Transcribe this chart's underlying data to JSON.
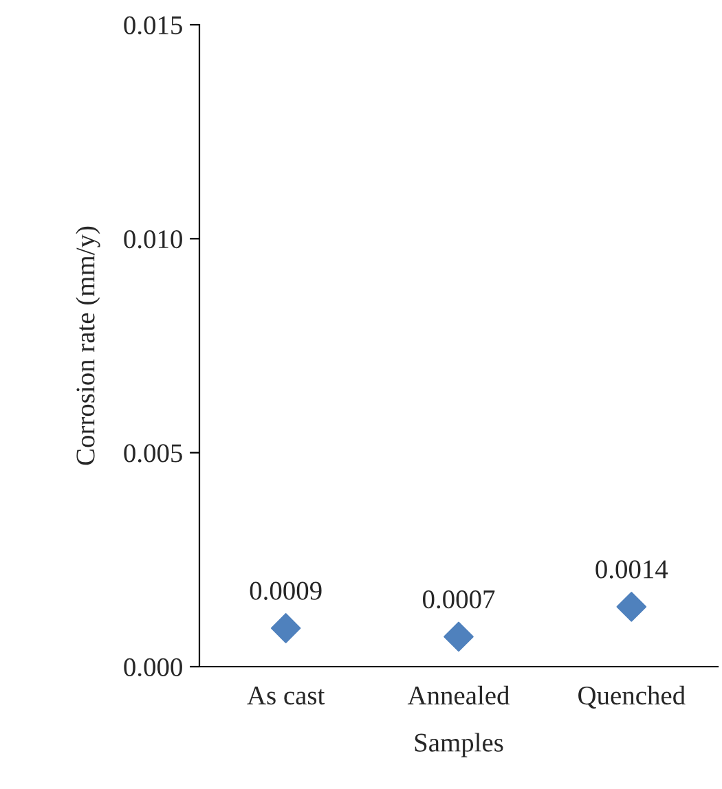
{
  "chart_data": {
    "type": "scatter",
    "xlabel": "Samples",
    "ylabel": "Corrosion rate (mm/y)",
    "categories": [
      "As cast",
      "Annealed",
      "Quenched"
    ],
    "values": [
      0.0009,
      0.0007,
      0.0014
    ],
    "color": "#4f81bd",
    "marker": "diamond",
    "data_labels": true,
    "ylim": [
      0,
      0.015
    ],
    "yticks": [
      {
        "value": 0,
        "label": "0.000"
      },
      {
        "value": 0.005,
        "label": "0.005"
      },
      {
        "value": 0.01,
        "label": "0.010"
      },
      {
        "value": 0.015,
        "label": "0.015"
      }
    ],
    "grid": false
  }
}
